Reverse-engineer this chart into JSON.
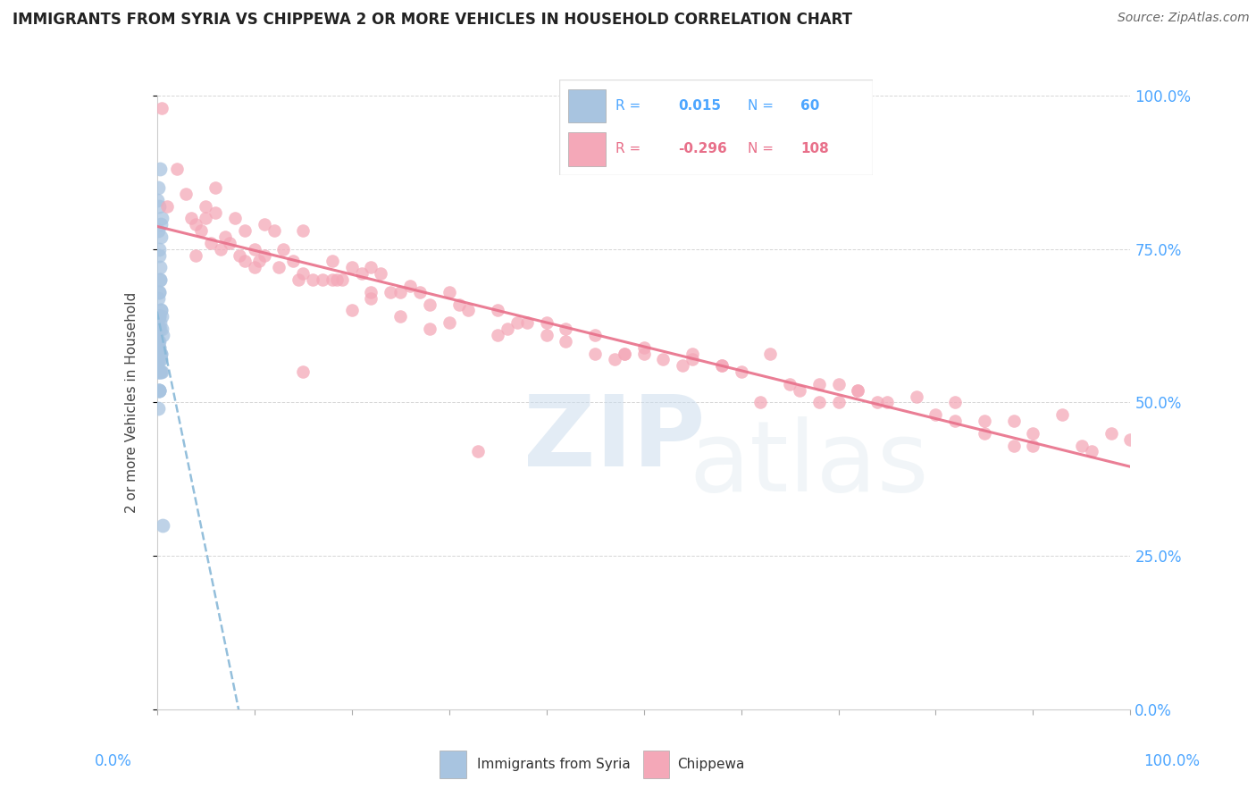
{
  "title": "IMMIGRANTS FROM SYRIA VS CHIPPEWA 2 OR MORE VEHICLES IN HOUSEHOLD CORRELATION CHART",
  "source": "Source: ZipAtlas.com",
  "ylabel": "2 or more Vehicles in Household",
  "R1": 0.015,
  "N1": 60,
  "R2": -0.296,
  "N2": 108,
  "color1": "#a8c4e0",
  "color2": "#f4a8b8",
  "trendline_color1": "#88b8d8",
  "trendline_color2": "#e8708a",
  "blue_points_x": [
    0.0,
    0.3,
    0.4,
    0.2,
    0.5,
    0.1,
    0.3,
    0.2,
    0.4,
    0.1,
    0.3,
    0.05,
    0.2,
    0.1,
    0.5,
    0.1,
    0.3,
    0.2,
    0.1,
    0.4,
    0.6,
    0.2,
    0.1,
    0.2,
    0.3,
    0.15,
    0.5,
    0.0,
    0.1,
    0.2,
    0.3,
    0.15,
    0.25,
    0.35,
    0.2,
    0.1,
    0.4,
    0.15,
    0.5,
    0.25,
    0.3,
    0.15,
    0.2,
    0.1,
    0.35,
    0.25,
    0.15,
    0.3,
    0.2,
    0.4,
    0.6,
    0.15,
    0.25,
    0.1,
    0.3,
    0.2,
    0.35,
    0.15,
    0.25,
    0.1
  ],
  "blue_points_y": [
    83,
    88,
    79,
    75,
    80,
    85,
    72,
    68,
    77,
    64,
    70,
    60,
    82,
    62,
    55,
    67,
    63,
    74,
    57,
    65,
    61,
    59,
    78,
    52,
    57,
    60,
    64,
    56,
    62,
    68,
    70,
    64,
    58,
    55,
    52,
    49,
    57,
    60,
    62,
    64,
    58,
    55,
    52,
    62,
    65,
    59,
    62,
    55,
    52,
    58,
    30,
    58,
    55,
    60,
    62,
    64,
    58,
    55,
    60,
    62
  ],
  "pink_points_x": [
    0.5,
    2.0,
    4.0,
    1.0,
    6.0,
    10.0,
    8.0,
    12.0,
    5.0,
    3.0,
    7.0,
    4.0,
    15.0,
    11.0,
    6.0,
    20.0,
    14.0,
    9.0,
    3.5,
    11.0,
    17.0,
    22.0,
    18.0,
    13.0,
    7.5,
    4.5,
    25.0,
    19.0,
    23.0,
    8.5,
    5.5,
    28.0,
    16.0,
    21.0,
    12.5,
    6.5,
    32.0,
    26.0,
    15.0,
    10.5,
    37.0,
    24.0,
    30.0,
    18.5,
    9.0,
    42.0,
    35.0,
    27.0,
    14.5,
    50.0,
    40.0,
    31.0,
    22.0,
    48.0,
    45.0,
    38.0,
    60.0,
    55.0,
    65.0,
    52.0,
    70.0,
    58.0,
    63.0,
    75.0,
    80.0,
    68.0,
    85.0,
    72.0,
    90.0,
    78.0,
    95.0,
    82.0,
    88.0,
    93.0,
    98.0,
    100.0,
    15.0,
    45.0,
    50.0,
    30.0,
    72.0,
    48.0,
    40.0,
    25.0,
    55.0,
    35.0,
    20.0,
    62.0,
    82.0,
    10.0,
    70.0,
    85.0,
    88.0,
    96.0,
    5.0,
    42.0,
    68.0,
    28.0,
    54.0,
    36.0,
    18.0,
    66.0,
    90.0,
    74.0,
    47.0,
    22.0,
    58.0,
    33.0
  ],
  "pink_points_y": [
    98,
    88,
    79,
    82,
    85,
    75,
    80,
    78,
    82,
    84,
    77,
    74,
    78,
    79,
    81,
    72,
    73,
    78,
    80,
    74,
    70,
    72,
    73,
    75,
    76,
    78,
    68,
    70,
    71,
    74,
    76,
    66,
    70,
    71,
    72,
    75,
    65,
    69,
    71,
    73,
    63,
    68,
    68,
    70,
    73,
    62,
    65,
    68,
    70,
    59,
    63,
    66,
    68,
    58,
    61,
    63,
    55,
    58,
    53,
    57,
    53,
    56,
    58,
    50,
    48,
    53,
    47,
    52,
    45,
    51,
    43,
    50,
    47,
    48,
    45,
    44,
    55,
    58,
    58,
    63,
    52,
    58,
    61,
    64,
    57,
    61,
    65,
    50,
    47,
    72,
    50,
    45,
    43,
    42,
    80,
    60,
    50,
    62,
    56,
    62,
    70,
    52,
    43,
    50,
    57,
    67,
    56,
    42
  ]
}
